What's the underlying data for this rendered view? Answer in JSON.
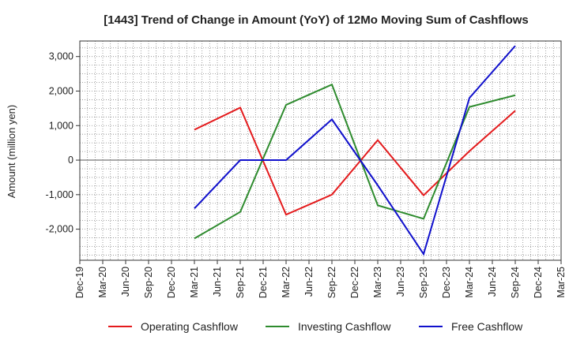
{
  "chart_data": {
    "type": "line",
    "title": "[1443]  Trend of Change in Amount (YoY) of 12Mo Moving Sum of Cashflows",
    "ylabel": "Amount (million yen)",
    "xlabel": "",
    "ylim": [
      -2900,
      3450
    ],
    "yticks": [
      3000,
      2000,
      1000,
      0,
      -1000,
      -2000
    ],
    "ytick_labels": [
      "3,000",
      "2,000",
      "1,000",
      "0",
      "-1,000",
      "-2,000"
    ],
    "categories": [
      "Dec-19",
      "Mar-20",
      "Jun-20",
      "Sep-20",
      "Dec-20",
      "Mar-21",
      "Jun-21",
      "Sep-21",
      "Dec-21",
      "Mar-22",
      "Jun-22",
      "Sep-22",
      "Dec-22",
      "Mar-23",
      "Jun-23",
      "Sep-23",
      "Dec-23",
      "Mar-24",
      "Jun-24",
      "Sep-24",
      "Dec-24",
      "Mar-25"
    ],
    "grid": true,
    "legend_position": "bottom",
    "series": [
      {
        "name": "Operating Cashflow",
        "color": "#e41a1c",
        "values": [
          null,
          null,
          null,
          null,
          null,
          880,
          null,
          1520,
          null,
          -1580,
          null,
          -1000,
          null,
          580,
          null,
          -1020,
          null,
          260,
          null,
          1430,
          null,
          null
        ]
      },
      {
        "name": "Investing Cashflow",
        "color": "#2e8b2e",
        "values": [
          null,
          null,
          null,
          null,
          null,
          -2270,
          null,
          -1500,
          null,
          1600,
          null,
          2190,
          null,
          -1310,
          null,
          -1700,
          null,
          1540,
          null,
          1880,
          null,
          null
        ]
      },
      {
        "name": "Free Cashflow",
        "color": "#1010cc",
        "values": [
          null,
          null,
          null,
          null,
          null,
          -1400,
          null,
          0,
          null,
          0,
          null,
          1180,
          null,
          -730,
          null,
          -2720,
          null,
          1800,
          null,
          3310,
          null,
          null
        ]
      }
    ]
  }
}
